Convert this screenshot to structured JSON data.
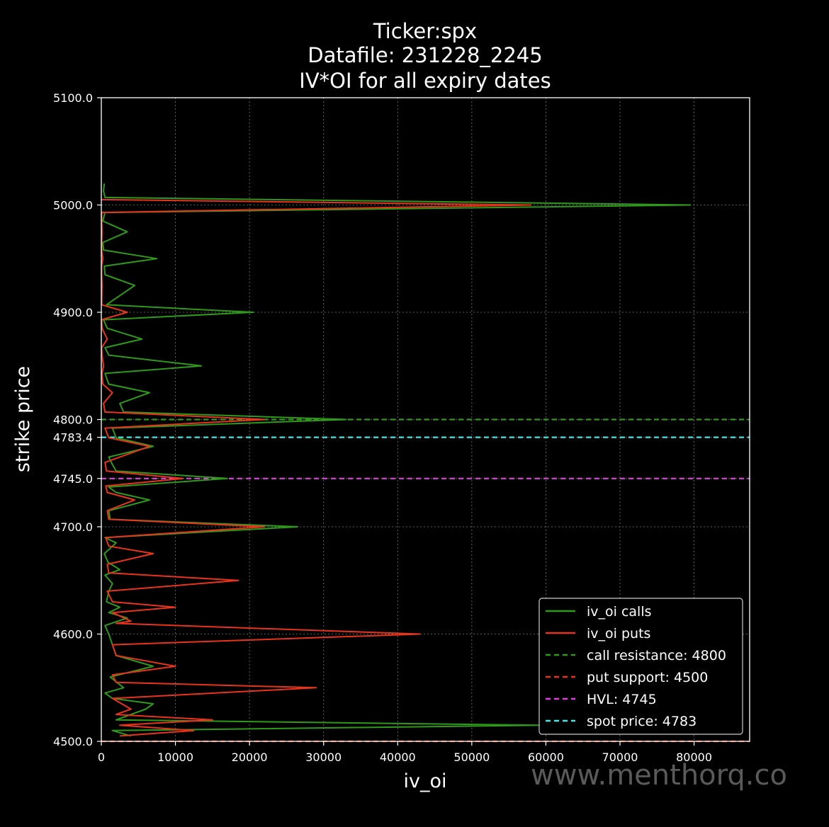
{
  "chart_data": {
    "type": "line",
    "orientation": "horizontal",
    "title_lines": [
      "Ticker:spx",
      "Datafile: 231228_2245",
      "IV*OI for all expiry dates"
    ],
    "xlabel": "iv_oi",
    "ylabel": "strike price",
    "xlim": [
      0,
      87500
    ],
    "ylim": [
      4500,
      5100
    ],
    "x_ticks": [
      0,
      10000,
      20000,
      30000,
      40000,
      50000,
      60000,
      70000,
      80000
    ],
    "y_ticks": [
      4500.0,
      4600.0,
      4700.0,
      4745.0,
      4783.4,
      4800.0,
      4900.0,
      5000.0,
      5100.0
    ],
    "y_tick_labels": [
      "4500.0",
      "4600.0",
      "4700.0",
      "4745.0",
      "4783.4",
      "4800.0",
      "4900.0",
      "5000.0",
      "5100.0"
    ],
    "grid": true,
    "legend_position": "lower-right",
    "series": [
      {
        "name": "iv_oi calls",
        "color": "#2e9a1a",
        "style": "solid",
        "points": [
          [
            4000,
            4505
          ],
          [
            1500,
            4510
          ],
          [
            59000,
            4515
          ],
          [
            2000,
            4520
          ],
          [
            6000,
            4530
          ],
          [
            7000,
            4535
          ],
          [
            1500,
            4540
          ],
          [
            500,
            4545
          ],
          [
            3000,
            4550
          ],
          [
            1200,
            4560
          ],
          [
            7000,
            4570
          ],
          [
            2000,
            4580
          ],
          [
            1500,
            4590
          ],
          [
            1000,
            4600
          ],
          [
            500,
            4608
          ],
          [
            3500,
            4615
          ],
          [
            1000,
            4620
          ],
          [
            2500,
            4625
          ],
          [
            700,
            4630
          ],
          [
            1000,
            4640
          ],
          [
            1500,
            4647
          ],
          [
            500,
            4655
          ],
          [
            2500,
            4660
          ],
          [
            900,
            4667
          ],
          [
            400,
            4675
          ],
          [
            2000,
            4685
          ],
          [
            500,
            4690
          ],
          [
            26500,
            4700
          ],
          [
            1200,
            4707
          ],
          [
            1000,
            4715
          ],
          [
            6500,
            4725
          ],
          [
            2000,
            4732
          ],
          [
            1000,
            4737
          ],
          [
            17000,
            4745
          ],
          [
            2000,
            4752
          ],
          [
            1500,
            4758
          ],
          [
            1000,
            4765
          ],
          [
            7000,
            4775
          ],
          [
            2000,
            4783
          ],
          [
            1500,
            4792
          ],
          [
            33000,
            4800
          ],
          [
            3000,
            4807
          ],
          [
            2500,
            4815
          ],
          [
            6500,
            4825
          ],
          [
            1000,
            4833
          ],
          [
            500,
            4843
          ],
          [
            13500,
            4850
          ],
          [
            1000,
            4860
          ],
          [
            500,
            4867
          ],
          [
            5500,
            4875
          ],
          [
            800,
            4885
          ],
          [
            300,
            4893
          ],
          [
            20500,
            4900
          ],
          [
            700,
            4907
          ],
          [
            4500,
            4925
          ],
          [
            500,
            4935
          ],
          [
            400,
            4943
          ],
          [
            7500,
            4950
          ],
          [
            300,
            4958
          ],
          [
            200,
            4965
          ],
          [
            3500,
            4975
          ],
          [
            200,
            4985
          ],
          [
            500,
            4993
          ],
          [
            79500,
            5000
          ],
          [
            500,
            5007
          ],
          [
            300,
            5013
          ],
          [
            400,
            5020
          ]
        ]
      },
      {
        "name": "iv_oi puts",
        "color": "#e8341a",
        "style": "solid",
        "points": [
          [
            2500,
            4505
          ],
          [
            12500,
            4510
          ],
          [
            2500,
            4515
          ],
          [
            15000,
            4520
          ],
          [
            2000,
            4525
          ],
          [
            4000,
            4530
          ],
          [
            1500,
            4540
          ],
          [
            29000,
            4550
          ],
          [
            2000,
            4555
          ],
          [
            1500,
            4562
          ],
          [
            10000,
            4570
          ],
          [
            2000,
            4580
          ],
          [
            1500,
            4590
          ],
          [
            43000,
            4600
          ],
          [
            2000,
            4610
          ],
          [
            4000,
            4612
          ],
          [
            1500,
            4620
          ],
          [
            10000,
            4625
          ],
          [
            1500,
            4630
          ],
          [
            800,
            4640
          ],
          [
            18500,
            4650
          ],
          [
            1000,
            4657
          ],
          [
            800,
            4665
          ],
          [
            7000,
            4675
          ],
          [
            1000,
            4682
          ],
          [
            600,
            4690
          ],
          [
            22000,
            4700
          ],
          [
            1000,
            4707
          ],
          [
            800,
            4715
          ],
          [
            4500,
            4725
          ],
          [
            800,
            4732
          ],
          [
            600,
            4738
          ],
          [
            11000,
            4745
          ],
          [
            700,
            4752
          ],
          [
            500,
            4760
          ],
          [
            6500,
            4775
          ],
          [
            1000,
            4783
          ],
          [
            500,
            4792
          ],
          [
            22000,
            4800
          ],
          [
            500,
            4807
          ],
          [
            300,
            4815
          ],
          [
            1500,
            4825
          ],
          [
            200,
            4833
          ],
          [
            100,
            4843
          ],
          [
            300,
            4850
          ],
          [
            100,
            4860
          ],
          [
            50,
            4867
          ],
          [
            800,
            4875
          ],
          [
            100,
            4885
          ],
          [
            50,
            4893
          ],
          [
            3500,
            4900
          ],
          [
            50,
            4907
          ],
          [
            100,
            4925
          ],
          [
            50,
            4935
          ],
          [
            50,
            4943
          ],
          [
            200,
            4950
          ],
          [
            50,
            4958
          ],
          [
            50,
            4965
          ],
          [
            100,
            4975
          ],
          [
            50,
            4985
          ],
          [
            50,
            4993
          ],
          [
            58000,
            5000
          ],
          [
            50,
            5005
          ]
        ]
      }
    ],
    "reference_lines": [
      {
        "label": "call resistance: 4800",
        "value": 4800,
        "color": "#2e9a1a",
        "style": "dashed"
      },
      {
        "label": "put support: 4500",
        "value": 4500,
        "color": "#e8341a",
        "style": "dashed"
      },
      {
        "label": "HVL: 4745",
        "value": 4745,
        "color": "#e040e0",
        "style": "dashed"
      },
      {
        "label": "spot price: 4783",
        "value": 4783.4,
        "color": "#40e8e8",
        "style": "dashed"
      }
    ]
  },
  "watermark": "www.menthorq.co"
}
